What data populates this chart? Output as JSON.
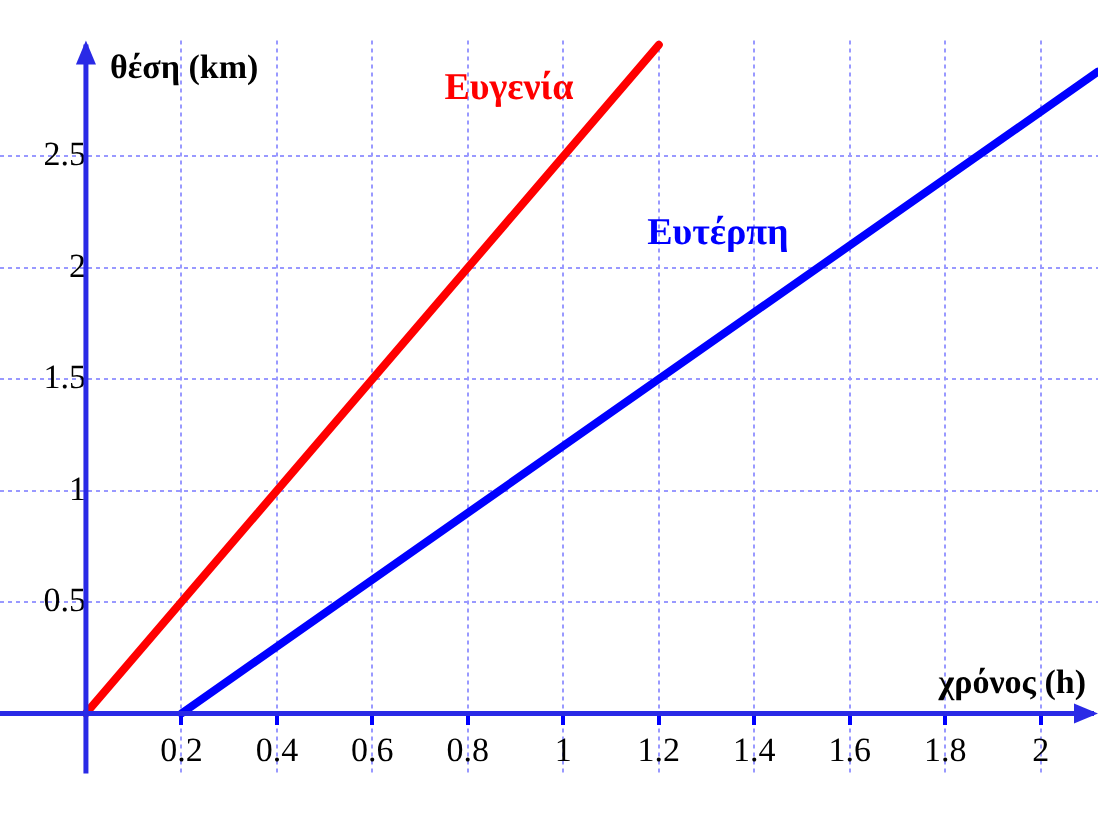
{
  "chart_data": {
    "type": "line",
    "xlabel": "χρόνος (h)",
    "ylabel": "θέση (km)",
    "series": [
      {
        "name": "Ευγενία",
        "color": "#ff0000",
        "x": [
          0,
          1.2
        ],
        "values": [
          0,
          3.0
        ]
      },
      {
        "name": "Ευτέρπη",
        "color": "#0000ff",
        "x": [
          0.2,
          2.12
        ],
        "values": [
          0,
          2.88
        ]
      }
    ],
    "xlim": [
      -0.18,
      2.12
    ],
    "ylim": [
      -0.27,
      3.02
    ],
    "xticks": [
      0.2,
      0.4,
      0.6,
      0.8,
      1,
      1.2,
      1.4,
      1.6,
      1.8,
      2
    ],
    "yticks": [
      0.5,
      1,
      1.5,
      2,
      2.5
    ],
    "grid": true,
    "legend": false,
    "marker": "none",
    "line_style": "solid"
  }
}
